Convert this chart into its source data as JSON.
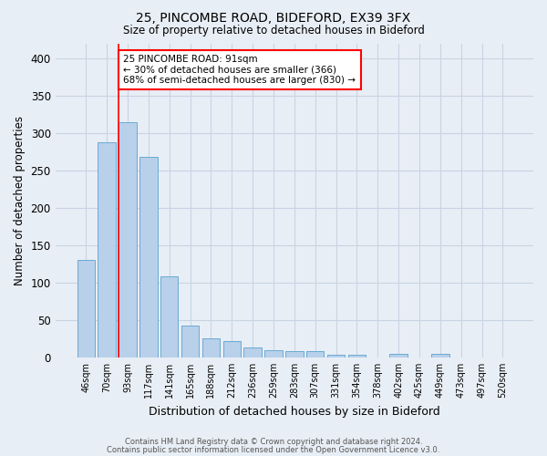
{
  "title1": "25, PINCOMBE ROAD, BIDEFORD, EX39 3FX",
  "title2": "Size of property relative to detached houses in Bideford",
  "xlabel": "Distribution of detached houses by size in Bideford",
  "ylabel": "Number of detached properties",
  "categories": [
    "46sqm",
    "70sqm",
    "93sqm",
    "117sqm",
    "141sqm",
    "165sqm",
    "188sqm",
    "212sqm",
    "236sqm",
    "259sqm",
    "283sqm",
    "307sqm",
    "331sqm",
    "354sqm",
    "378sqm",
    "402sqm",
    "425sqm",
    "449sqm",
    "473sqm",
    "497sqm",
    "520sqm"
  ],
  "values": [
    130,
    288,
    315,
    268,
    108,
    42,
    26,
    22,
    13,
    10,
    9,
    8,
    3,
    4,
    0,
    5,
    0,
    5,
    0,
    0,
    0
  ],
  "bar_color": "#b8d0ea",
  "bar_edge_color": "#6aaad4",
  "grid_color": "#c8d4e4",
  "background_color": "#e8eef5",
  "annotation_box_text": "25 PINCOMBE ROAD: 91sqm\n← 30% of detached houses are smaller (366)\n68% of semi-detached houses are larger (830) →",
  "annotation_box_color": "white",
  "annotation_box_edge_color": "red",
  "footer_text1": "Contains HM Land Registry data © Crown copyright and database right 2024.",
  "footer_text2": "Contains public sector information licensed under the Open Government Licence v3.0.",
  "ylim": [
    0,
    420
  ],
  "yticks": [
    0,
    50,
    100,
    150,
    200,
    250,
    300,
    350,
    400
  ]
}
